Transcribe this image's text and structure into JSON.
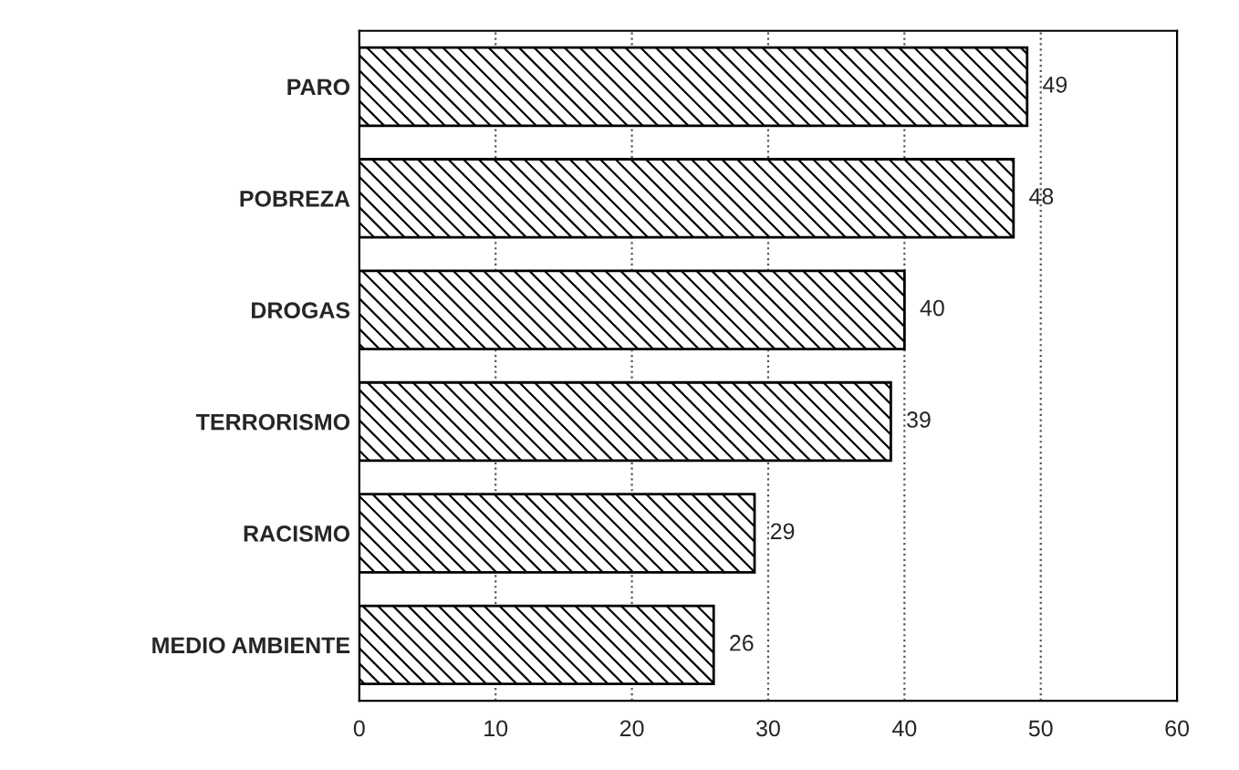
{
  "chart_data": {
    "type": "bar",
    "orientation": "horizontal",
    "categories": [
      "PARO",
      "POBREZA",
      "DROGAS",
      "TERRORISMO",
      "RACISMO",
      "MEDIO AMBIENTE"
    ],
    "values": [
      49,
      48,
      40,
      39,
      29,
      26
    ],
    "color": "#000000",
    "xlim": [
      0,
      60
    ],
    "xticks": [
      0,
      10,
      20,
      30,
      40,
      50,
      60
    ],
    "grid": "x",
    "data_labels": true,
    "legend": false
  }
}
